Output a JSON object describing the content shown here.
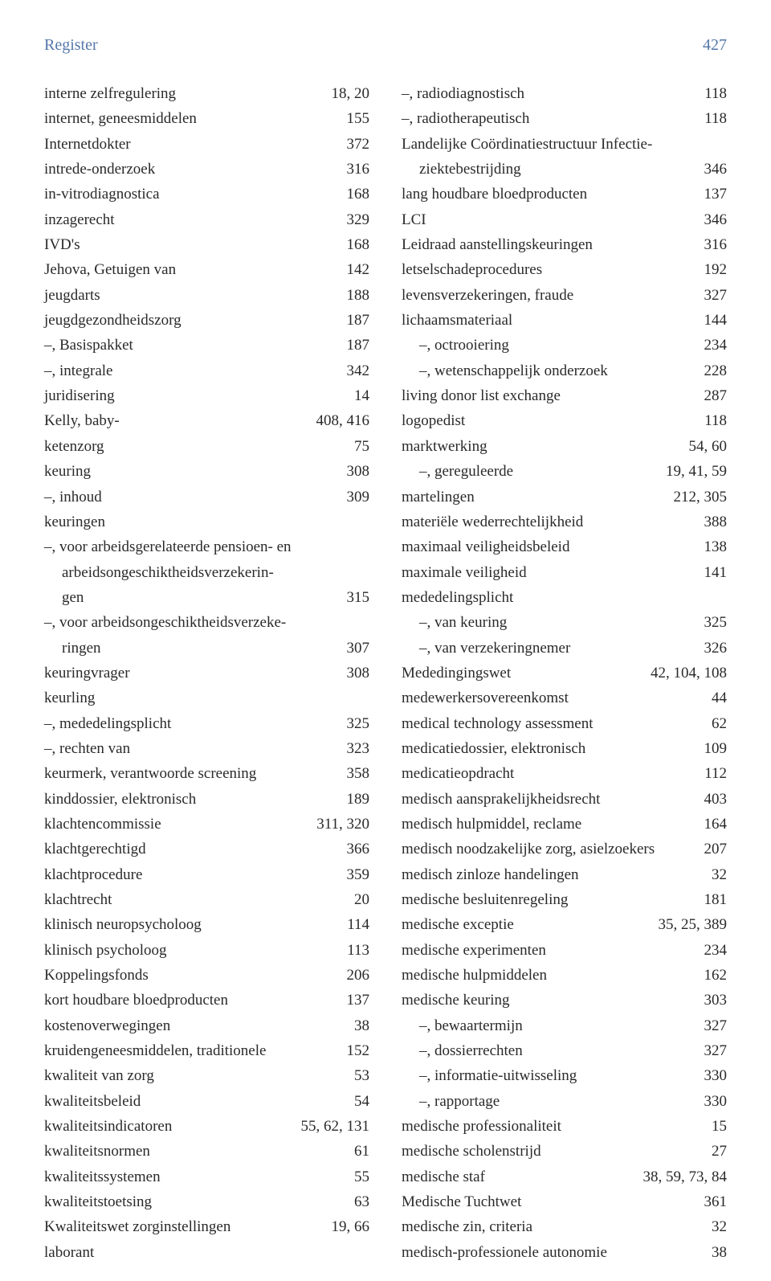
{
  "header": {
    "title": "Register",
    "page": "427"
  },
  "left": [
    {
      "term": "interne zelfregulering",
      "pages": "18, 20"
    },
    {
      "term": "internet, geneesmiddelen",
      "pages": "155"
    },
    {
      "term": "Internetdokter",
      "pages": "372"
    },
    {
      "term": "intrede-onderzoek",
      "pages": "316"
    },
    {
      "term": "in-vitrodiagnostica",
      "pages": "168"
    },
    {
      "term": "inzagerecht",
      "pages": "329"
    },
    {
      "term": "IVD's",
      "pages": "168"
    },
    {
      "term": "Jehova, Getuigen van",
      "pages": "142"
    },
    {
      "term": "jeugdarts",
      "pages": "188"
    },
    {
      "term": "jeugdgezondheidszorg",
      "pages": "187"
    },
    {
      "term": "–, Basispakket",
      "pages": "187"
    },
    {
      "term": "–, integrale",
      "pages": "342"
    },
    {
      "term": "juridisering",
      "pages": "14"
    },
    {
      "term": "Kelly, baby-",
      "pages": "408, 416"
    },
    {
      "term": "ketenzorg",
      "pages": "75"
    },
    {
      "term": "keuring",
      "pages": "308"
    },
    {
      "term": "–, inhoud",
      "pages": "309"
    },
    {
      "term": "keuringen",
      "pages": "",
      "noval": true
    },
    {
      "term": "–, voor arbeidsgerelateerde pensioen- en",
      "pages": "",
      "noval": true
    },
    {
      "term": "arbeidsongeschiktheidsverzekerin-",
      "pages": "",
      "indent": 1,
      "noval": true
    },
    {
      "term": "gen",
      "pages": "315",
      "indent": 1
    },
    {
      "term": "–, voor arbeidsongeschiktheidsverzeke-",
      "pages": "",
      "noval": true
    },
    {
      "term": "ringen",
      "pages": "307",
      "indent": 1
    },
    {
      "term": "keuringvrager",
      "pages": "308"
    },
    {
      "term": "keurling",
      "pages": "",
      "noval": true
    },
    {
      "term": "–, mededelingsplicht",
      "pages": "325"
    },
    {
      "term": "–, rechten van",
      "pages": "323"
    },
    {
      "term": "keurmerk, verantwoorde screening",
      "pages": "358"
    },
    {
      "term": "kinddossier, elektronisch",
      "pages": "189"
    },
    {
      "term": "klachtencommissie",
      "pages": "311, 320"
    },
    {
      "term": "klachtgerechtigd",
      "pages": "366"
    },
    {
      "term": "klachtprocedure",
      "pages": "359"
    },
    {
      "term": "klachtrecht",
      "pages": "20"
    },
    {
      "term": "klinisch neuropsycholoog",
      "pages": "114"
    },
    {
      "term": "klinisch psycholoog",
      "pages": "113"
    },
    {
      "term": "Koppelingsfonds",
      "pages": "206"
    },
    {
      "term": "kort houdbare bloedproducten",
      "pages": "137"
    },
    {
      "term": "kostenoverwegingen",
      "pages": "38"
    },
    {
      "term": "kruidengeneesmiddelen, traditionele",
      "pages": "152"
    },
    {
      "term": "kwaliteit van zorg",
      "pages": "53"
    },
    {
      "term": "kwaliteitsbeleid",
      "pages": "54"
    },
    {
      "term": "kwaliteitsindicatoren",
      "pages": "55, 62, 131"
    },
    {
      "term": "kwaliteitsnormen",
      "pages": "61"
    },
    {
      "term": "kwaliteitssystemen",
      "pages": "55"
    },
    {
      "term": "kwaliteitstoetsing",
      "pages": "63"
    },
    {
      "term": "Kwaliteitswet zorginstellingen",
      "pages": "19, 66"
    },
    {
      "term": "laborant",
      "pages": "",
      "noval": true
    }
  ],
  "right": [
    {
      "term": "–, radiodiagnostisch",
      "pages": "118"
    },
    {
      "term": "–, radiotherapeutisch",
      "pages": "118"
    },
    {
      "term": "Landelijke Coördinatiestructuur Infectie-",
      "pages": "",
      "noval": true
    },
    {
      "term": "ziektebestrijding",
      "pages": "346",
      "indent": 1
    },
    {
      "term": "lang houdbare bloedproducten",
      "pages": "137"
    },
    {
      "term": "LCI",
      "pages": "346"
    },
    {
      "term": "Leidraad aanstellingskeuringen",
      "pages": "316"
    },
    {
      "term": "letselschadeprocedures",
      "pages": "192"
    },
    {
      "term": "levensverzekeringen, fraude",
      "pages": "327"
    },
    {
      "term": "lichaamsmateriaal",
      "pages": "144"
    },
    {
      "term": "–, octrooiering",
      "pages": "234",
      "indent": 1
    },
    {
      "term": "–, wetenschappelijk onderzoek",
      "pages": "228",
      "indent": 1
    },
    {
      "term": "living donor list exchange",
      "pages": "287"
    },
    {
      "term": "logopedist",
      "pages": "118"
    },
    {
      "term": "marktwerking",
      "pages": "54, 60"
    },
    {
      "term": "–, gereguleerde",
      "pages": "19, 41, 59",
      "indent": 1
    },
    {
      "term": "martelingen",
      "pages": "212, 305"
    },
    {
      "term": "materiële wederrechtelijkheid",
      "pages": "388"
    },
    {
      "term": "maximaal veiligheidsbeleid",
      "pages": "138"
    },
    {
      "term": "maximale veiligheid",
      "pages": "141"
    },
    {
      "term": "mededelingsplicht",
      "pages": "",
      "noval": true
    },
    {
      "term": "–, van keuring",
      "pages": "325",
      "indent": 1
    },
    {
      "term": "–, van verzekeringnemer",
      "pages": "326",
      "indent": 1
    },
    {
      "term": "Mededingingswet",
      "pages": "42, 104, 108"
    },
    {
      "term": "medewerkersovereenkomst",
      "pages": "44"
    },
    {
      "term": "medical technology assessment",
      "pages": "62"
    },
    {
      "term": "medicatiedossier, elektronisch",
      "pages": "109"
    },
    {
      "term": "medicatieopdracht",
      "pages": "112"
    },
    {
      "term": "medisch aansprakelijkheidsrecht",
      "pages": "403"
    },
    {
      "term": "medisch hulpmiddel, reclame",
      "pages": "164"
    },
    {
      "term": "medisch noodzakelijke zorg, asielzoekers",
      "pages": "207"
    },
    {
      "term": "medisch zinloze handelingen",
      "pages": "32"
    },
    {
      "term": "medische besluitenregeling",
      "pages": "181"
    },
    {
      "term": "medische exceptie",
      "pages": "35, 25, 389"
    },
    {
      "term": "medische experimenten",
      "pages": "234"
    },
    {
      "term": "medische hulpmiddelen",
      "pages": "162"
    },
    {
      "term": "medische keuring",
      "pages": "303"
    },
    {
      "term": "–, bewaartermijn",
      "pages": "327",
      "indent": 1
    },
    {
      "term": "–, dossierrechten",
      "pages": "327",
      "indent": 1
    },
    {
      "term": "–, informatie-uitwisseling",
      "pages": "330",
      "indent": 1
    },
    {
      "term": "–, rapportage",
      "pages": "330",
      "indent": 1
    },
    {
      "term": "medische professionaliteit",
      "pages": "15"
    },
    {
      "term": "medische scholenstrijd",
      "pages": "27"
    },
    {
      "term": "medische staf",
      "pages": "38, 59, 73, 84"
    },
    {
      "term": "Medische Tuchtwet",
      "pages": "361"
    },
    {
      "term": "medische zin, criteria",
      "pages": "32"
    },
    {
      "term": "medisch-professionele autonomie",
      "pages": "38"
    }
  ]
}
